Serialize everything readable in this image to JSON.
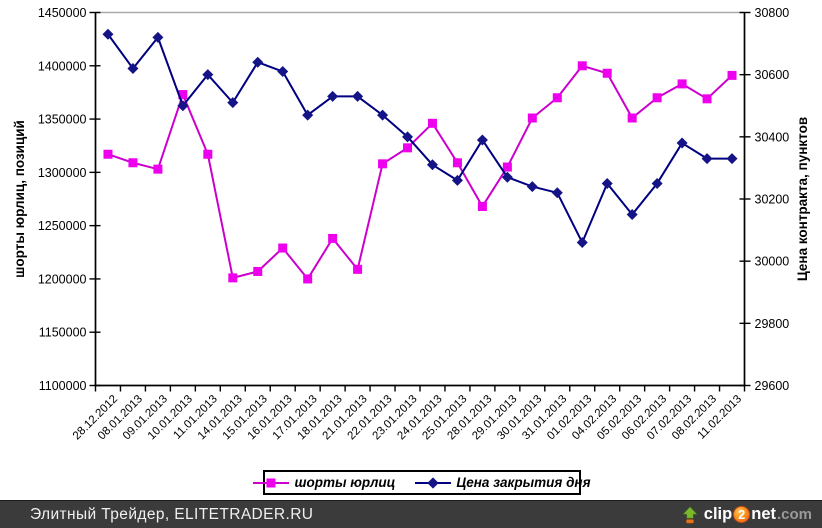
{
  "chart_data": {
    "type": "line",
    "title": "",
    "categories": [
      "28.12.2012",
      "08.01.2013",
      "09.01.2013",
      "10.01.2013",
      "11.01.2013",
      "14.01.2013",
      "15.01.2013",
      "16.01.2013",
      "17.01.2013",
      "18.01.2013",
      "21.01.2013",
      "22.01.2013",
      "23.01.2013",
      "24.01.2013",
      "25.01.2013",
      "28.01.2013",
      "29.01.2013",
      "30.01.2013",
      "31.01.2013",
      "01.02.2013",
      "04.02.2013",
      "05.02.2013",
      "06.02.2013",
      "07.02.2013",
      "08.02.2013",
      "11.02.2013"
    ],
    "series": [
      {
        "name": "шорты юрлиц",
        "axis": "left",
        "marker": "square",
        "color": "#CC00CC",
        "marker_color": "#EE00EE",
        "values": [
          1317000,
          1309000,
          1303000,
          1373000,
          1317000,
          1201000,
          1207000,
          1229000,
          1200000,
          1238000,
          1209000,
          1308000,
          1323000,
          1346000,
          1309000,
          1268000,
          1305000,
          1351000,
          1370000,
          1400000,
          1393000,
          1351000,
          1370000,
          1383000,
          1369000,
          1391000
        ]
      },
      {
        "name": "Цена закрытия дня",
        "axis": "right",
        "marker": "diamond",
        "color": "#000080",
        "marker_color": "#141487",
        "values": [
          30730,
          30620,
          30720,
          30500,
          30600,
          30510,
          30640,
          30610,
          30470,
          30530,
          30530,
          30470,
          30400,
          30310,
          30260,
          30390,
          30270,
          30240,
          30220,
          30060,
          30250,
          30150,
          30250,
          30380,
          30330,
          30330
        ]
      }
    ],
    "axes": {
      "left": {
        "title": "шорты юрлиц, позиций",
        "min": 1100000,
        "max": 1450000,
        "ticks": [
          "1450000",
          "1400000",
          "1350000",
          "1300000",
          "1250000",
          "1200000",
          "1150000",
          "1100000"
        ]
      },
      "right": {
        "title": "Цена контракта, пунктов",
        "min": 29600,
        "max": 30800,
        "ticks": [
          "30800",
          "30600",
          "30400",
          "30200",
          "30000",
          "29800",
          "29600"
        ]
      }
    },
    "legend_position": "bottom",
    "grid": "off"
  },
  "footer": {
    "credit": "Элитный Трейдер, ELITETRADER.RU",
    "logo": {
      "icon": "upload-arrow-icon",
      "clip": "clip",
      "two": "2",
      "net": "net",
      "com": ".com"
    }
  }
}
